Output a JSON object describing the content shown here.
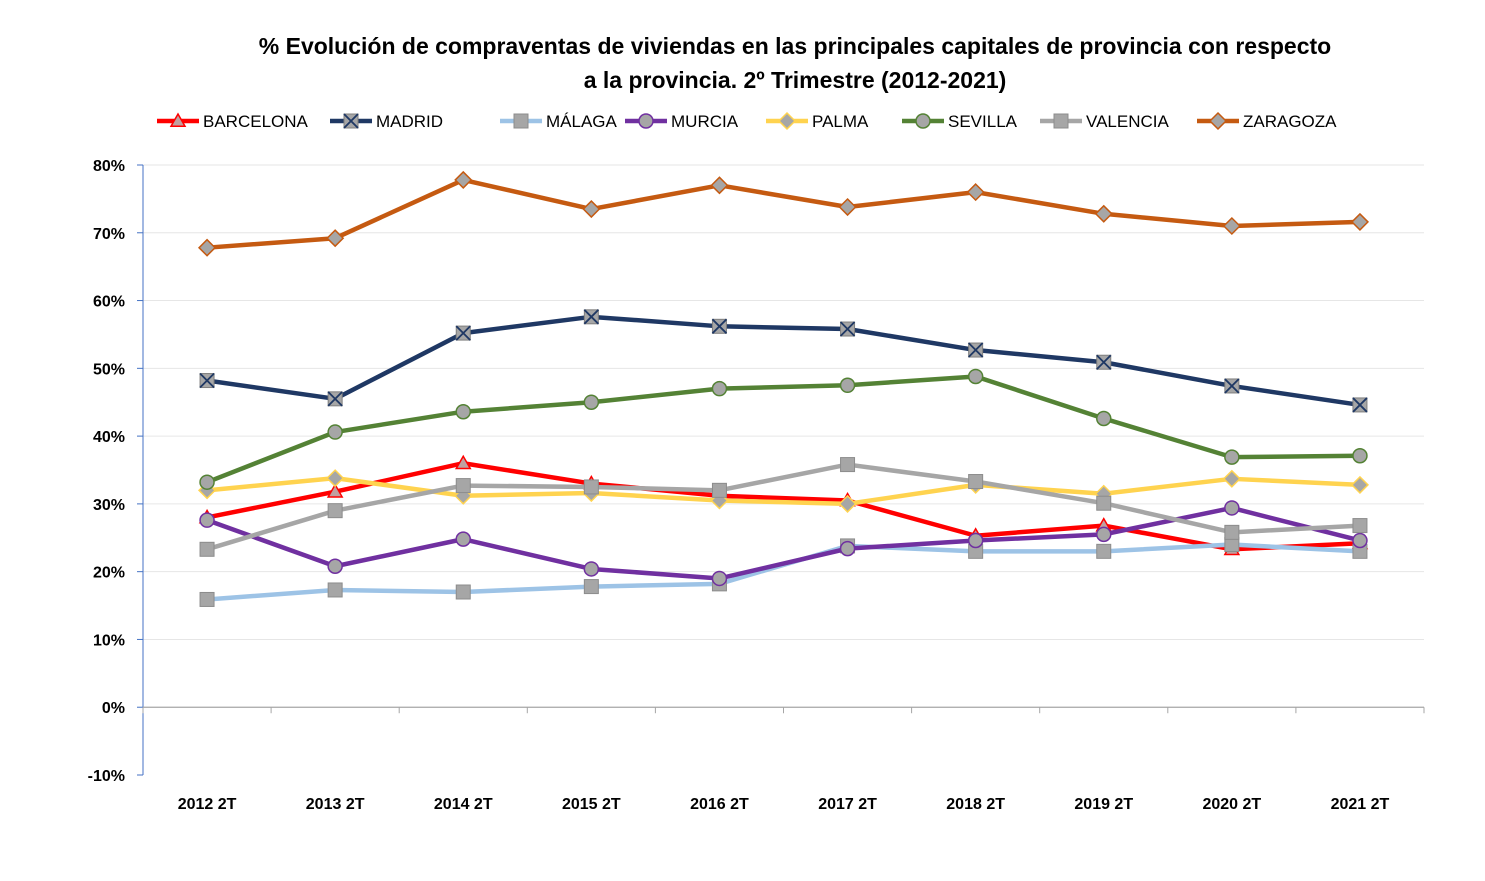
{
  "chart_data": {
    "type": "line",
    "title_lines": [
      "% Evolución de compraventas de viviendas en las principales capitales de provincia con respecto",
      "a la provincia.  2º Trimestre (2012-2021)"
    ],
    "categories": [
      "2012 2T",
      "2013 2T",
      "2014 2T",
      "2015 2T",
      "2016 2T",
      "2017 2T",
      "2018 2T",
      "2019 2T",
      "2020 2T",
      "2021 2T"
    ],
    "y_ticks": [
      "-10%",
      "0%",
      "10%",
      "20%",
      "30%",
      "40%",
      "50%",
      "60%",
      "70%",
      "80%"
    ],
    "ylim": [
      -10,
      80
    ],
    "grid": true,
    "legend_position": "top",
    "series": [
      {
        "name": "BARCELONA",
        "color": "#ff0000",
        "marker": "triangle",
        "values": [
          28.0,
          31.8,
          36.0,
          33.0,
          31.2,
          30.5,
          25.3,
          26.8,
          23.3,
          24.2
        ]
      },
      {
        "name": "MADRID",
        "color": "#1f3864",
        "marker": "x-square",
        "values": [
          48.2,
          45.5,
          55.2,
          57.6,
          56.2,
          55.8,
          52.7,
          50.9,
          47.4,
          44.6
        ]
      },
      {
        "name": "MÁLAGA",
        "color": "#9dc3e6",
        "marker": "square",
        "values": [
          15.9,
          17.3,
          17.0,
          17.8,
          18.2,
          23.8,
          23.0,
          23.0,
          24.0,
          23.0
        ]
      },
      {
        "name": "MURCIA",
        "color": "#7030a0",
        "marker": "circle",
        "values": [
          27.6,
          20.8,
          24.8,
          20.4,
          19.0,
          23.4,
          24.6,
          25.5,
          29.4,
          24.6
        ]
      },
      {
        "name": "PALMA",
        "color": "#ffd34f",
        "marker": "diamond",
        "values": [
          32.0,
          33.8,
          31.2,
          31.6,
          30.5,
          30.0,
          32.8,
          31.5,
          33.7,
          32.8
        ]
      },
      {
        "name": "SEVILLA",
        "color": "#548235",
        "marker": "circle",
        "values": [
          33.2,
          40.6,
          43.6,
          45.0,
          47.0,
          47.5,
          48.8,
          42.6,
          36.9,
          37.1
        ]
      },
      {
        "name": "VALENCIA",
        "color": "#a6a6a6",
        "marker": "square",
        "values": [
          23.3,
          29.0,
          32.7,
          32.5,
          32.0,
          35.8,
          33.3,
          30.1,
          25.8,
          26.8
        ]
      },
      {
        "name": "ZARAGOZA",
        "color": "#c55a11",
        "marker": "diamond",
        "values": [
          67.8,
          69.2,
          77.8,
          73.5,
          77.0,
          73.8,
          76.0,
          72.8,
          71.0,
          71.6
        ]
      }
    ]
  }
}
